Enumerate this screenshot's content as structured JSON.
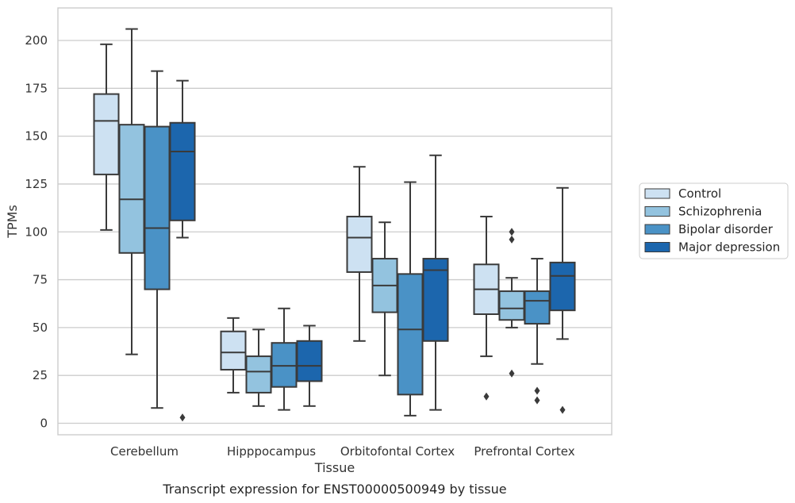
{
  "caption": "Transcript expression for ENST00000500949 by tissue",
  "colors": {
    "Control": "#cde1f2",
    "Schizophrenia": "#93c3df",
    "Bipolar disorder": "#4a92c6",
    "Major depression": "#1c66ad",
    "box_edge": "#3a3a3a",
    "grid": "#cccccc",
    "frame": "#cccccc"
  },
  "chart_data": {
    "type": "box",
    "xlabel": "Tissue",
    "ylabel": "TPMs",
    "ylim": [
      -6,
      217
    ],
    "yticks": [
      0,
      25,
      50,
      75,
      100,
      125,
      150,
      175,
      200
    ],
    "grid": "horizontal",
    "legend_position": "right",
    "categories": [
      "Cerebellum",
      "Hipppocampus",
      "Orbitofontal Cortex",
      "Prefrontal Cortex"
    ],
    "series": [
      {
        "name": "Control",
        "boxes": [
          {
            "whislo": 101,
            "q1": 130,
            "med": 158,
            "q3": 172,
            "whishi": 198,
            "fliers": []
          },
          {
            "whislo": 16,
            "q1": 28,
            "med": 37,
            "q3": 48,
            "whishi": 55,
            "fliers": []
          },
          {
            "whislo": 43,
            "q1": 79,
            "med": 97,
            "q3": 108,
            "whishi": 134,
            "fliers": []
          },
          {
            "whislo": 35,
            "q1": 57,
            "med": 70,
            "q3": 83,
            "whishi": 108,
            "fliers": [
              14
            ]
          }
        ]
      },
      {
        "name": "Schizophrenia",
        "boxes": [
          {
            "whislo": 36,
            "q1": 89,
            "med": 117,
            "q3": 156,
            "whishi": 206,
            "fliers": []
          },
          {
            "whislo": 9,
            "q1": 16,
            "med": 27,
            "q3": 35,
            "whishi": 49,
            "fliers": []
          },
          {
            "whislo": 25,
            "q1": 58,
            "med": 72,
            "q3": 86,
            "whishi": 105,
            "fliers": []
          },
          {
            "whislo": 50,
            "q1": 54,
            "med": 60,
            "q3": 69,
            "whishi": 76,
            "fliers": [
              100,
              96,
              26
            ]
          }
        ]
      },
      {
        "name": "Bipolar disorder",
        "boxes": [
          {
            "whislo": 8,
            "q1": 70,
            "med": 102,
            "q3": 155,
            "whishi": 184,
            "fliers": []
          },
          {
            "whislo": 7,
            "q1": 19,
            "med": 30,
            "q3": 42,
            "whishi": 60,
            "fliers": []
          },
          {
            "whislo": 4,
            "q1": 15,
            "med": 49,
            "q3": 78,
            "whishi": 126,
            "fliers": []
          },
          {
            "whislo": 31,
            "q1": 52,
            "med": 64,
            "q3": 69,
            "whishi": 86,
            "fliers": [
              17,
              12
            ]
          }
        ]
      },
      {
        "name": "Major depression",
        "boxes": [
          {
            "whislo": 97,
            "q1": 106,
            "med": 142,
            "q3": 157,
            "whishi": 179,
            "fliers": [
              3
            ]
          },
          {
            "whislo": 9,
            "q1": 22,
            "med": 30,
            "q3": 43,
            "whishi": 51,
            "fliers": []
          },
          {
            "whislo": 7,
            "q1": 43,
            "med": 80,
            "q3": 86,
            "whishi": 140,
            "fliers": []
          },
          {
            "whislo": 44,
            "q1": 59,
            "med": 77,
            "q3": 84,
            "whishi": 123,
            "fliers": [
              7
            ]
          }
        ]
      }
    ]
  }
}
